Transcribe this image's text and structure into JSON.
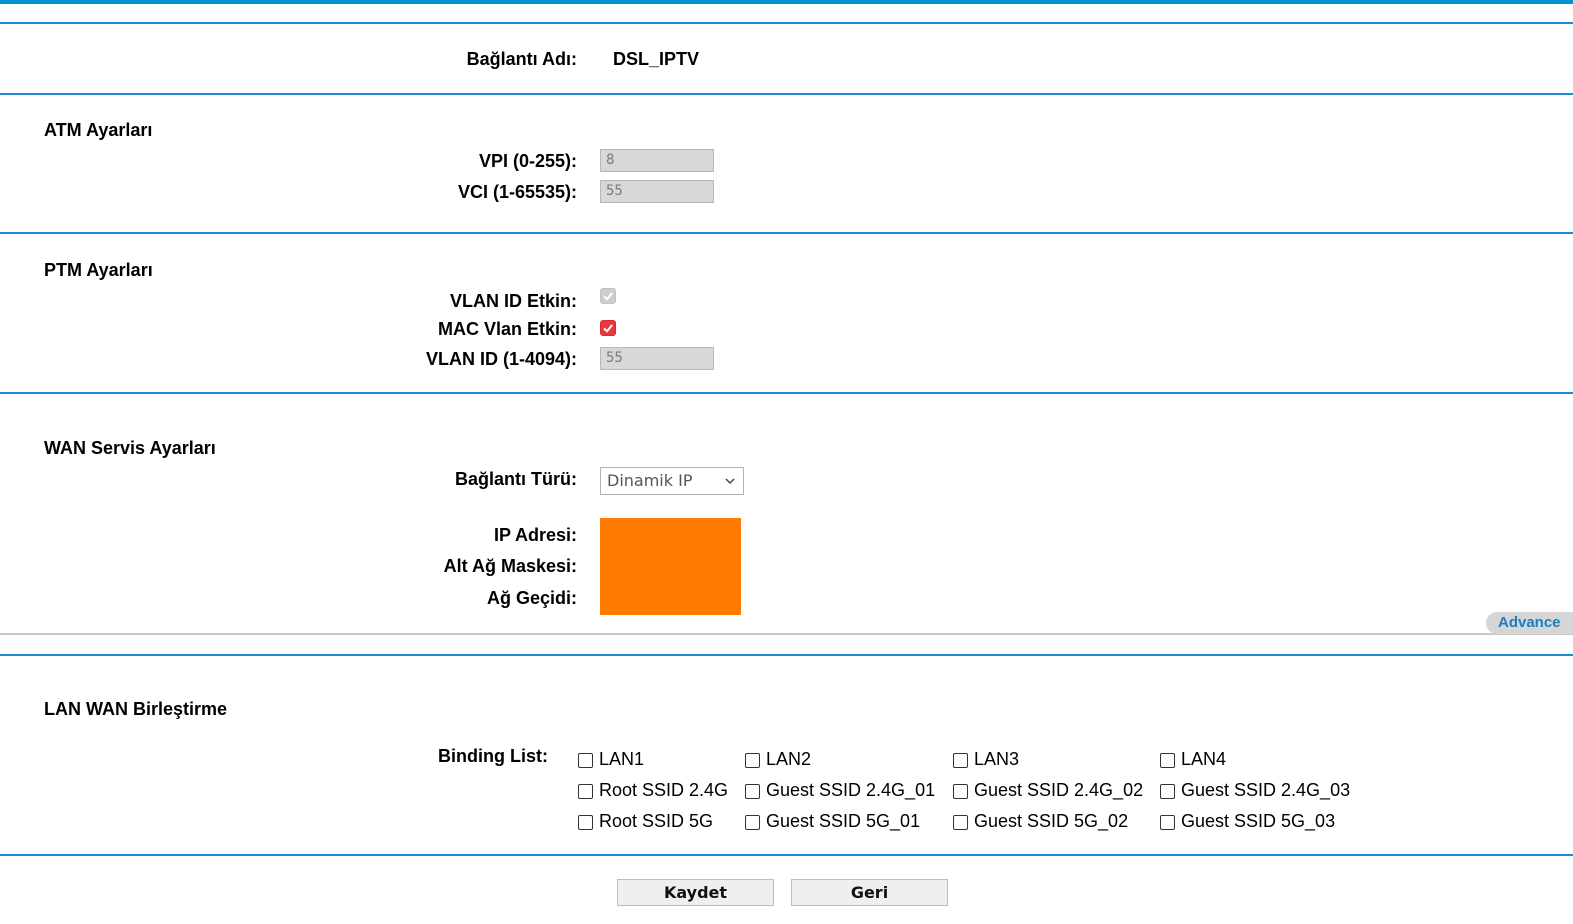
{
  "connection": {
    "name_label": "Bağlantı Adı:",
    "name_value": "DSL_IPTV"
  },
  "atm": {
    "title": "ATM Ayarları",
    "vpi_label": "VPI (0-255):",
    "vpi_value": "8",
    "vci_label": "VCI (1-65535):",
    "vci_value": "55"
  },
  "ptm": {
    "title": "PTM Ayarları",
    "vlan_enabled_label": "VLAN ID Etkin:",
    "vlan_enabled": true,
    "mac_vlan_label": "MAC Vlan Etkin:",
    "mac_vlan": true,
    "vlan_id_label": "VLAN ID (1-4094):",
    "vlan_id_value": "55"
  },
  "wan": {
    "title": "WAN Servis Ayarları",
    "type_label": "Bağlantı Türü:",
    "type_value": "Dinamik IP",
    "ip_label": "IP Adresi:",
    "mask_label": "Alt Ağ Maskesi:",
    "gateway_label": "Ağ Geçidi:",
    "advance_label": "Advance",
    "redaction_color": "#ff7a00"
  },
  "binding": {
    "title": "LAN WAN Birleştirme",
    "list_label": "Binding List:",
    "items": [
      "LAN1",
      "LAN2",
      "LAN3",
      "LAN4",
      "Root SSID 2.4G",
      "Guest SSID 2.4G_01",
      "Guest SSID 2.4G_02",
      "Guest SSID 2.4G_03",
      "Root SSID 5G",
      "Guest SSID 5G_01",
      "Guest SSID 5G_02",
      "Guest SSID 5G_03"
    ]
  },
  "buttons": {
    "save": "Kaydet",
    "back": "Geri"
  },
  "colors": {
    "accent": "#0093d0",
    "checkbox_checked": "#e8383b"
  }
}
